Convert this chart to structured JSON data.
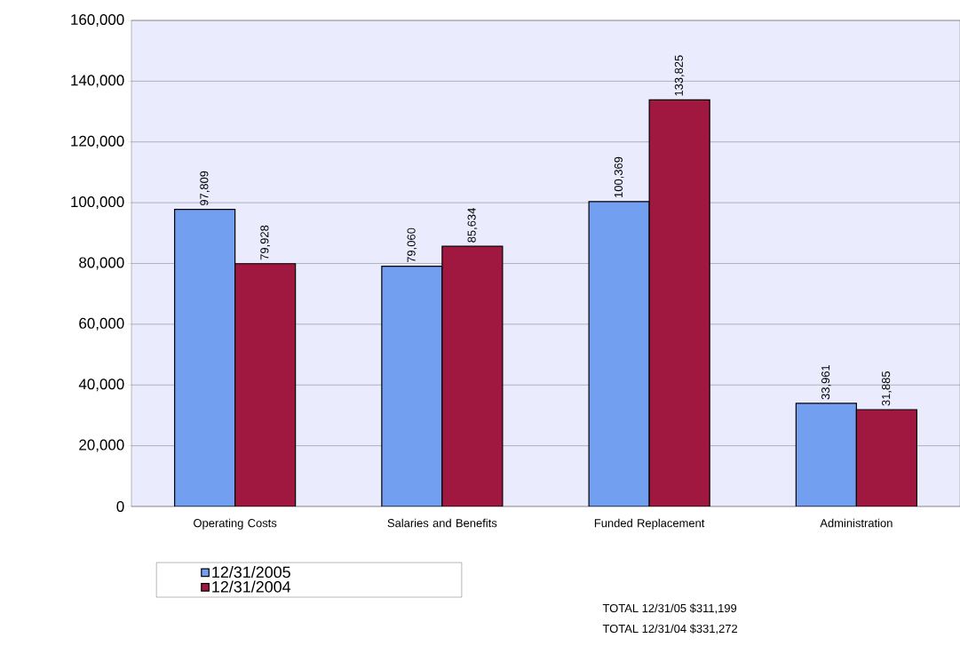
{
  "chart_data": {
    "type": "bar",
    "categories": [
      "Operating Costs",
      "Salaries and Benefits",
      "Funded Replacement",
      "Administration"
    ],
    "series": [
      {
        "name": "12/31/2005",
        "color": "#729ff0",
        "values": [
          97809,
          79060,
          100369,
          33961
        ]
      },
      {
        "name": "12/31/2004",
        "color": "#a01840",
        "values": [
          79928,
          85634,
          133825,
          31885
        ]
      }
    ],
    "ylim": [
      0,
      160000
    ],
    "yticks": [
      {
        "value": 0,
        "label": "0"
      },
      {
        "value": 20000,
        "label": "20,000"
      },
      {
        "value": 40000,
        "label": "40,000"
      },
      {
        "value": 60000,
        "label": "60,000"
      },
      {
        "value": 80000,
        "label": "80,000"
      },
      {
        "value": 100000,
        "label": "100,000"
      },
      {
        "value": 120000,
        "label": "120,000"
      },
      {
        "value": 140000,
        "label": "140,000"
      },
      {
        "value": 160000,
        "label": "160,000"
      }
    ],
    "value_labels": [
      [
        "97,809",
        "79,060",
        "100,369",
        "33,961"
      ],
      [
        "79,928",
        "85,634",
        "133,825",
        "31,885"
      ]
    ],
    "grid": "y",
    "legend": "bottom left",
    "annotations": [
      "TOTAL 12/31/05 $311,199",
      "TOTAL 12/31/04 $331,272"
    ]
  }
}
